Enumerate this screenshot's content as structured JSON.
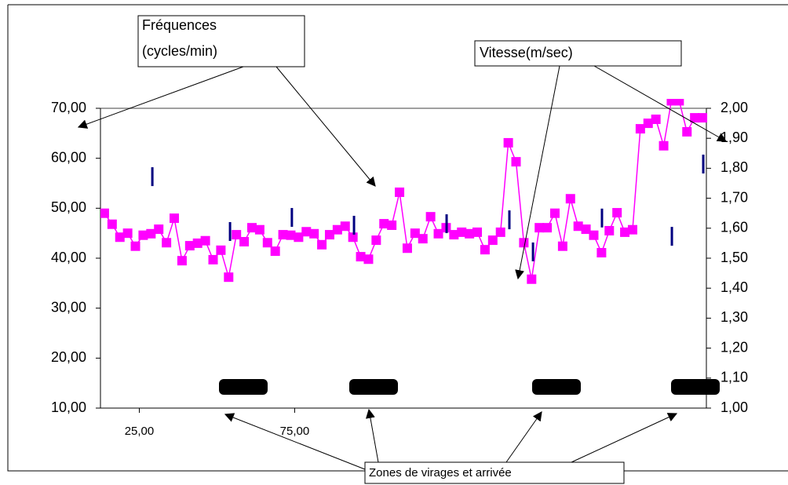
{
  "chart_data": {
    "type": "line",
    "xlim": [
      12.5,
      207.5
    ],
    "xticks": [
      {
        "value": 25,
        "label": "25,00"
      },
      {
        "value": 75,
        "label": "75,00"
      }
    ],
    "ylim": [
      10,
      70
    ],
    "yticks": [
      {
        "value": 10,
        "label": "10,00"
      },
      {
        "value": 20,
        "label": "20,00"
      },
      {
        "value": 30,
        "label": "30,00"
      },
      {
        "value": 40,
        "label": "40,00"
      },
      {
        "value": 50,
        "label": "50,00"
      },
      {
        "value": 60,
        "label": "60,00"
      },
      {
        "value": 70,
        "label": "70,00"
      }
    ],
    "y2lim": [
      1,
      2
    ],
    "y2ticks": [
      {
        "value": 1,
        "label": "1,00"
      },
      {
        "value": 1.1,
        "label": "1,10"
      },
      {
        "value": 1.2,
        "label": "1,20"
      },
      {
        "value": 1.3,
        "label": "1,30"
      },
      {
        "value": 1.4,
        "label": "1,40"
      },
      {
        "value": 1.5,
        "label": "1,50"
      },
      {
        "value": 1.6,
        "label": "1,60"
      },
      {
        "value": 1.7,
        "label": "1,70"
      },
      {
        "value": 1.8,
        "label": "1,80"
      },
      {
        "value": 1.9,
        "label": "1,90"
      },
      {
        "value": 2,
        "label": "2,00"
      }
    ],
    "series": [
      {
        "color": "#ff00ff",
        "marker": "square",
        "line": true,
        "x": [
          13.75,
          16.25,
          18.75,
          21.25,
          23.75,
          26.25,
          28.75,
          31.25,
          33.75,
          36.25,
          38.75,
          41.25,
          43.75,
          46.25,
          48.75,
          51.25,
          53.75,
          56.25,
          58.75,
          61.25,
          63.75,
          66.25,
          68.75,
          71.25,
          73.75,
          76.25,
          78.75,
          81.25,
          83.75,
          86.25,
          88.75,
          91.25,
          93.75,
          96.25,
          98.75,
          101.25,
          103.75,
          106.25,
          108.75,
          111.25,
          113.75,
          116.25,
          118.75,
          121.25,
          123.75,
          126.25,
          128.75,
          131.25,
          133.75,
          136.25,
          138.75,
          141.25,
          143.75,
          146.25,
          148.75,
          151.25,
          153.75,
          156.25,
          158.75,
          161.25,
          163.75,
          166.25,
          168.75,
          171.25,
          173.75,
          176.25,
          178.75,
          181.25,
          183.75,
          186.25,
          188.75,
          191.25,
          193.75,
          196.25,
          198.75,
          201.25,
          203.75,
          206.25
        ],
        "values": [
          49.0,
          46.8,
          44.2,
          45.0,
          42.4,
          44.6,
          44.9,
          45.8,
          43.1,
          48.0,
          39.5,
          42.5,
          43.0,
          43.5,
          39.7,
          41.6,
          36.2,
          44.7,
          43.3,
          46.1,
          45.7,
          43.1,
          41.4,
          44.7,
          44.6,
          44.2,
          45.3,
          44.9,
          42.7,
          44.7,
          45.7,
          46.4,
          44.2,
          40.3,
          39.8,
          43.6,
          46.9,
          46.6,
          53.2,
          42.0,
          45.0,
          43.9,
          48.3,
          44.9,
          46.1,
          44.7,
          45.2,
          44.9,
          45.2,
          41.7,
          43.6,
          45.2,
          63.1,
          59.3,
          43.1,
          35.8,
          46.1,
          46.1,
          49.0,
          42.4,
          51.9,
          46.4,
          45.8,
          44.6,
          41.1,
          45.5,
          49.1,
          45.2,
          45.7,
          65.9,
          67.0,
          67.8,
          62.5,
          71.5,
          71.5,
          65.3,
          68.1,
          68.1
        ]
      },
      {
        "color": "#000080",
        "marker": "dash",
        "line": false,
        "axis": "y2",
        "x": [
          29.2,
          54.2,
          74.1,
          94.1,
          123.9,
          144.1,
          151.7,
          173.9,
          196.4,
          206.5
        ],
        "values": [
          1.772,
          1.589,
          1.636,
          1.61,
          1.615,
          1.628,
          1.521,
          1.634,
          1.573,
          1.814
        ]
      }
    ],
    "annotations": [
      {
        "lines": [
          "Fréquences",
          "(cycles/min)"
        ]
      },
      {
        "lines": [
          "Vitesse(m/sec)"
        ]
      },
      {
        "lines": [
          "Zones de virages et arrivée"
        ]
      }
    ]
  }
}
